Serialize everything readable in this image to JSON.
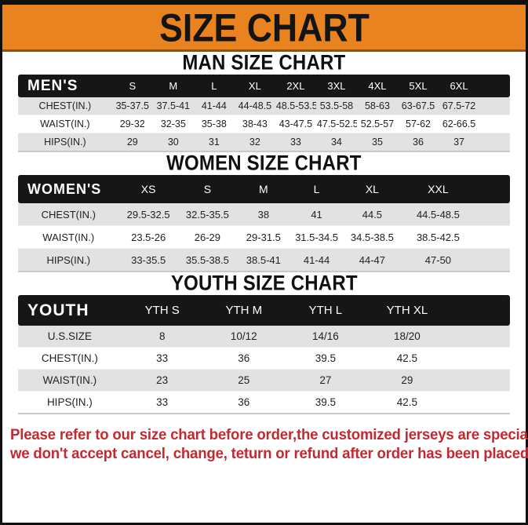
{
  "title": "SIZE CHART",
  "sections": [
    {
      "heading": "MAN SIZE CHART",
      "table": {
        "header": [
          "MEN'S",
          "S",
          "M",
          "L",
          "XL",
          "2XL",
          "3XL",
          "4XL",
          "5XL",
          "6XL"
        ],
        "rows": [
          {
            "label": "CHEST(IN.)",
            "values": [
              "35-37.5",
              "37.5-41",
              "41-44",
              "44-48.5",
              "48.5-53.5",
              "53.5-58",
              "58-63",
              "63-67.5",
              "67.5-72"
            ]
          },
          {
            "label": "WAIST(IN.)",
            "values": [
              "29-32",
              "32-35",
              "35-38",
              "38-43",
              "43-47.5",
              "47.5-52.5",
              "52.5-57",
              "57-62",
              "62-66.5"
            ]
          },
          {
            "label": "HIPS(IN.)",
            "values": [
              "29",
              "30",
              "31",
              "32",
              "33",
              "34",
              "35",
              "36",
              "37"
            ]
          }
        ]
      }
    },
    {
      "heading": "WOMEN SIZE CHART",
      "table": {
        "header": [
          "WOMEN'S",
          "XS",
          "S",
          "M",
          "L",
          "XL",
          "XXL"
        ],
        "rows": [
          {
            "label": "CHEST(IN.)",
            "values": [
              "29.5-32.5",
              "32.5-35.5",
              "38",
              "41",
              "44.5",
              "44.5-48.5"
            ]
          },
          {
            "label": "WAIST(IN.)",
            "values": [
              "23.5-26",
              "26-29",
              "29-31.5",
              "31.5-34.5",
              "34.5-38.5",
              "38.5-42.5"
            ]
          },
          {
            "label": "HIPS(IN.)",
            "values": [
              "33-35.5",
              "35.5-38.5",
              "38.5-41",
              "41-44",
              "44-47",
              "47-50"
            ]
          }
        ]
      }
    },
    {
      "heading": "YOUTH SIZE CHART",
      "table": {
        "header": [
          "YOUTH",
          "YTH S",
          "YTH M",
          "YTH L",
          "YTH XL"
        ],
        "rows": [
          {
            "label": "U.S.SIZE",
            "values": [
              "8",
              "10/12",
              "14/16",
              "18/20"
            ]
          },
          {
            "label": "CHEST(IN.)",
            "values": [
              "33",
              "36",
              "39.5",
              "42.5"
            ]
          },
          {
            "label": "WAIST(IN.)",
            "values": [
              "23",
              "25",
              "27",
              "29"
            ]
          },
          {
            "label": "HIPS(IN.)",
            "values": [
              "33",
              "36",
              "39.5",
              "42.5"
            ]
          }
        ]
      }
    }
  ],
  "footer": {
    "line1": "Please refer to our size chart before order,the customized jerseys are special products,",
    "line2": "we don't accept cancel, change, teturn or refund after order has been placed!"
  },
  "colors": {
    "accent_orange": "#E8831F",
    "header_black": "#161616",
    "row_gray": "#E2E2E2",
    "footer_red": "#C22A31"
  }
}
